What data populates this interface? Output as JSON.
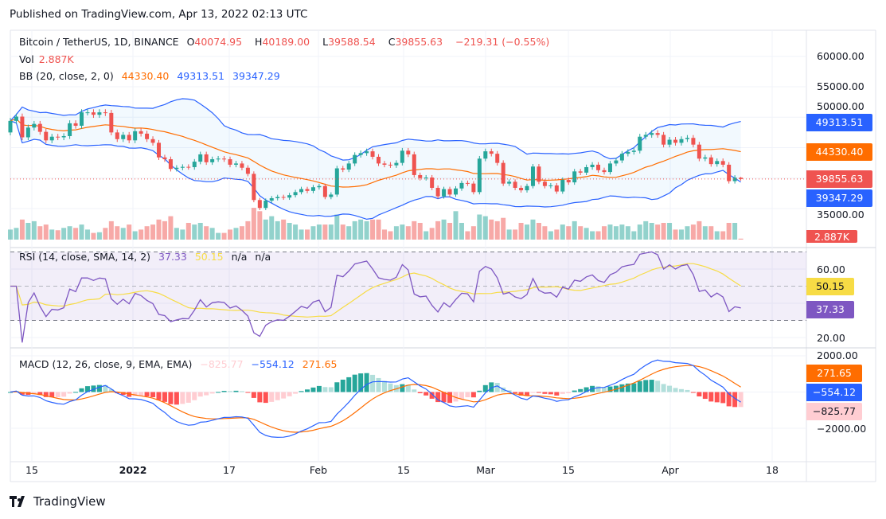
{
  "published": "Published on TradingView.com, Apr 13, 2022 02:13 UTC",
  "brand": "TradingView",
  "legend": {
    "symbol": "Bitcoin / TetherUS, 1D, BINANCE",
    "o_label": "O",
    "o": "40074.95",
    "h_label": "H",
    "h": "40189.00",
    "l_label": "L",
    "l": "39588.54",
    "c_label": "C",
    "c": "39855.63",
    "change": "−219.31 (−0.55%)",
    "vol_label": "Vol",
    "vol": "2.887K",
    "bb_label": "BB (20, close, 2, 0)",
    "bb_basis": "44330.40",
    "bb_upper": "49313.51",
    "bb_lower": "39347.29",
    "rsi_label": "RSI (14, close, SMA, 14, 2)",
    "rsi": "37.33",
    "rsi_ma": "50.15",
    "rsi_na1": "n/a",
    "rsi_na2": "n/a",
    "macd_label": "MACD (12, 26, close, 9, EMA, EMA)",
    "macd_hist": "−825.77",
    "macd": "−554.12",
    "macd_signal": "271.65"
  },
  "price_axis": {
    "ticks": [
      "60000.00",
      "55000.00",
      "50000.00",
      "35000.00"
    ],
    "tags": {
      "upper": "49313.51",
      "basis": "44330.40",
      "close": "39855.63",
      "lower": "39347.29",
      "volume": "2.887K"
    }
  },
  "rsi_axis": {
    "ticks": [
      "60.00",
      "20.00"
    ],
    "tags": {
      "ma": "50.15",
      "rsi": "37.33"
    }
  },
  "macd_axis": {
    "ticks": [
      "2000.00",
      "−2000.00"
    ],
    "tags": {
      "signal": "271.65",
      "macd": "−554.12",
      "hist": "−825.77"
    }
  },
  "time_axis": [
    "15",
    "2022",
    "17",
    "Feb",
    "15",
    "Mar",
    "15",
    "Apr",
    "18"
  ],
  "colors": {
    "up": "#26a69a",
    "down": "#ef5350",
    "bb_basis": "#ff6d00",
    "bb_band": "#2962ff",
    "rsi": "#7e57c2",
    "rsi_ma": "#f7dc45",
    "macd": "#2962ff",
    "signal": "#ff6d00"
  },
  "chart_data": {
    "type": "candlestick",
    "interval": "1D",
    "date_range": [
      "2021-12-11",
      "2022-04-13"
    ],
    "last_bar": {
      "open": 40074.95,
      "high": 40189.0,
      "low": 39588.54,
      "close": 39855.63,
      "volume_k": 2.887
    },
    "close": [
      49400,
      50100,
      46700,
      48300,
      48900,
      47600,
      46200,
      46800,
      46700,
      46900,
      49000,
      48600,
      50800,
      50800,
      50400,
      50800,
      50700,
      47500,
      46400,
      47100,
      46200,
      47700,
      47300,
      46400,
      45800,
      43400,
      43100,
      41500,
      41700,
      41850,
      41800,
      42700,
      43900,
      42600,
      43100,
      43200,
      43100,
      42200,
      42400,
      41700,
      40700,
      36400,
      35100,
      36300,
      36700,
      36900,
      36800,
      37200,
      37700,
      38200,
      37900,
      38500,
      38700,
      36900,
      37300,
      41600,
      41400,
      42400,
      43800,
      44100,
      44400,
      43500,
      42400,
      42200,
      42100,
      42500,
      44500,
      43900,
      40500,
      40000,
      40100,
      38400,
      37000,
      38200,
      37300,
      38300,
      39200,
      39100,
      37700,
      43200,
      44400,
      44000,
      42500,
      39100,
      39400,
      38400,
      38000,
      38700,
      41900,
      39400,
      38700,
      38800,
      37800,
      39700,
      39300,
      41100,
      40900,
      41800,
      42200,
      41300,
      41000,
      42400,
      42900,
      44000,
      44300,
      44500,
      46800,
      47100,
      47400,
      47100,
      45500,
      46300,
      45800,
      46400,
      46600,
      45500,
      43200,
      43400,
      42300,
      42800,
      42200,
      39500,
      40074.95,
      39855.63
    ],
    "volume_k": [
      30,
      35,
      60,
      50,
      55,
      40,
      45,
      30,
      28,
      35,
      40,
      35,
      45,
      30,
      20,
      22,
      35,
      55,
      40,
      35,
      45,
      25,
      30,
      40,
      45,
      60,
      55,
      70,
      35,
      30,
      50,
      45,
      50,
      40,
      35,
      20,
      20,
      30,
      35,
      40,
      55,
      95,
      85,
      60,
      70,
      55,
      60,
      50,
      45,
      30,
      30,
      40,
      45,
      45,
      45,
      75,
      45,
      40,
      55,
      60,
      55,
      60,
      60,
      30,
      25,
      40,
      45,
      40,
      55,
      50,
      25,
      35,
      55,
      60,
      50,
      85,
      50,
      25,
      40,
      75,
      70,
      60,
      55,
      65,
      30,
      30,
      50,
      45,
      60,
      50,
      40,
      25,
      30,
      45,
      40,
      55,
      40,
      35,
      25,
      25,
      40,
      45,
      40,
      45,
      40,
      25,
      45,
      55,
      50,
      45,
      50,
      50,
      30,
      30,
      40,
      45,
      55,
      40,
      40,
      25,
      25,
      50,
      50,
      2.887
    ],
    "indicators": [
      "Volume",
      "BB (20, close, 2, 0)",
      "RSI (14, close, SMA, 14, 2)",
      "MACD (12, 26, close, 9, EMA, EMA)"
    ],
    "price_ylim": [
      33000,
      62000
    ],
    "rsi_ylim": [
      10,
      85
    ],
    "rsi_bands": [
      30,
      70
    ],
    "macd_ylim": [
      -3000,
      2500
    ]
  }
}
